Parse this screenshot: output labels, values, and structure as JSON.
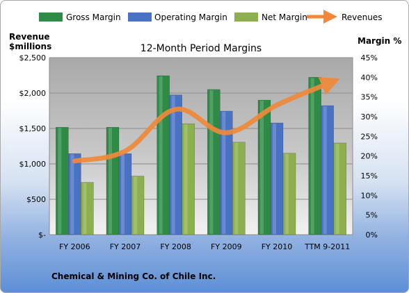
{
  "chart_data": {
    "type": "bar",
    "title": "12-Month Period Margins",
    "company": "Chemical & Mining Co. of Chile Inc.",
    "left_axis_label_line1": "Revenue",
    "left_axis_label_line2": "$millions",
    "right_axis_label": "Margin %",
    "categories": [
      "FY 2006",
      "FY 2007",
      "FY 2008",
      "FY 2009",
      "FY 2010",
      "TTM 9-2011"
    ],
    "left_ticks": [
      "$-",
      "$500",
      "$1,000",
      "$1,500",
      "$2,000",
      "$2,500"
    ],
    "right_ticks": [
      "0%",
      "5%",
      "10%",
      "15%",
      "20%",
      "25%",
      "30%",
      "35%",
      "40%",
      "45%"
    ],
    "ylim_left": [
      0,
      2500
    ],
    "ylim_right": [
      0,
      45
    ],
    "grid": true,
    "legend_position": "top",
    "series": [
      {
        "name": "Gross Margin",
        "axis": "right",
        "kind": "bar",
        "color": "#2e8b45",
        "values": [
          27.3,
          27.3,
          40.4,
          36.9,
          34.2,
          40.0
        ]
      },
      {
        "name": "Operating Margin",
        "axis": "right",
        "kind": "bar",
        "color": "#4a72c4",
        "values": [
          20.6,
          20.6,
          35.5,
          31.4,
          28.4,
          32.8
        ]
      },
      {
        "name": "Net Margin",
        "axis": "right",
        "kind": "bar",
        "color": "#8db04e",
        "values": [
          13.3,
          14.9,
          28.2,
          23.5,
          20.7,
          23.3
        ]
      },
      {
        "name": "Revenues",
        "axis": "left",
        "kind": "line",
        "color": "#f0893a",
        "values": [
          1040,
          1180,
          1770,
          1440,
          1830,
          2130
        ]
      }
    ]
  }
}
